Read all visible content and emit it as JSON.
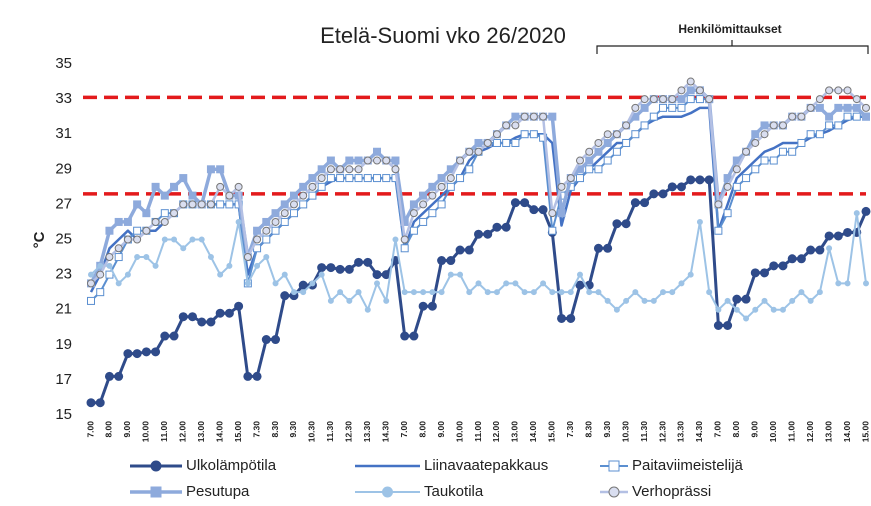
{
  "chart_data": {
    "type": "line",
    "title": "Etelä-Suomi vko 26/2020",
    "y_label": "°C",
    "annotation": "Henkilömittaukset",
    "categories": [
      "7.00",
      null,
      "8.00",
      null,
      "9.00",
      null,
      "10.00",
      null,
      "11.00",
      null,
      "12.00",
      null,
      "13.00",
      null,
      "14.00",
      null,
      "15.00",
      null,
      "7.30",
      null,
      "8.30",
      null,
      "9.30",
      null,
      "10.30",
      null,
      "11.30",
      null,
      "12.30",
      null,
      "13.30",
      null,
      "14.30",
      null,
      "7.00",
      null,
      "8.00",
      null,
      "9.00",
      null,
      "10.00",
      null,
      "11.00",
      null,
      "12.00",
      null,
      "13.00",
      null,
      "14.00",
      null,
      "15.00",
      null,
      "7.30",
      null,
      "8.30",
      null,
      "9.30",
      null,
      "10.30",
      null,
      "11.30",
      null,
      "12.30",
      null,
      "13.30",
      null,
      "14.30",
      null,
      "7.00",
      null,
      "8.00",
      null,
      "9.00",
      null,
      "10.00",
      null,
      "11.00",
      null,
      "12.00",
      null,
      "13.00",
      null,
      "14.00",
      null,
      "15.00"
    ],
    "ylim": [
      15,
      35
    ],
    "yticks": [
      15,
      17,
      19,
      21,
      23,
      25,
      27,
      29,
      31,
      33,
      35
    ],
    "grid": false,
    "reference_lines": [
      {
        "value": 33.1,
        "color": "#e31a1c"
      },
      {
        "value": 27.6,
        "color": "#e31a1c"
      }
    ],
    "series": [
      {
        "name": "Ulkolämpötila",
        "color": "#2f4b8a",
        "marker": "circle",
        "marker_fill": "#2f4b8a",
        "line_width": 3,
        "values": [
          15.7,
          15.7,
          17.2,
          17.2,
          18.5,
          18.5,
          18.6,
          18.6,
          19.5,
          19.5,
          20.6,
          20.6,
          20.3,
          20.3,
          20.8,
          20.8,
          21.2,
          17.2,
          17.2,
          19.3,
          19.3,
          21.8,
          21.8,
          22.4,
          22.4,
          23.4,
          23.4,
          23.3,
          23.3,
          23.7,
          23.7,
          23.0,
          23.0,
          23.8,
          19.5,
          19.5,
          21.2,
          21.2,
          23.8,
          23.8,
          24.4,
          24.4,
          25.3,
          25.3,
          25.7,
          25.7,
          27.1,
          27.1,
          26.7,
          26.7,
          25.4,
          20.5,
          20.5,
          22.4,
          22.4,
          24.5,
          24.5,
          25.9,
          25.9,
          27.1,
          27.1,
          27.6,
          27.6,
          28.0,
          28.0,
          28.4,
          28.4,
          28.4,
          20.1,
          20.1,
          21.6,
          21.6,
          23.1,
          23.1,
          23.5,
          23.5,
          23.9,
          23.9,
          24.4,
          24.4,
          25.2,
          25.2,
          25.4,
          25.4,
          26.6
        ]
      },
      {
        "name": "Liinavaatepakkaus",
        "color": "#4472c4",
        "marker": "none",
        "line_width": 2.5,
        "values": [
          22.0,
          23.0,
          24.5,
          25.0,
          25.5,
          25.0,
          25.5,
          25.5,
          26.0,
          26.5,
          27.0,
          27.0,
          27.0,
          27.0,
          27.0,
          27.0,
          27.0,
          23,
          24.5,
          25,
          25.5,
          26,
          26.5,
          27,
          27.5,
          28.0,
          28.3,
          28.5,
          28.5,
          28.5,
          28.5,
          28.5,
          28.5,
          28.5,
          24.5,
          26,
          26.5,
          27,
          27.5,
          28,
          28.5,
          29.5,
          30,
          30.2,
          30.5,
          30.5,
          30.8,
          31,
          31,
          31,
          30.5,
          25.8,
          27.8,
          28.5,
          29,
          29.5,
          30,
          30.5,
          30.5,
          31,
          31.5,
          31.8,
          32,
          32,
          32,
          32.2,
          32.5,
          32.5,
          25.5,
          27,
          28.5,
          29,
          29.5,
          30,
          30.2,
          30.5,
          30.5,
          30.5,
          30.8,
          31,
          31.2,
          31.5,
          31.8,
          32,
          32
        ]
      },
      {
        "name": "Paitaviimeistelijä",
        "color": "#5b8fd0",
        "marker": "square",
        "marker_fill": "#ffffff",
        "line_width": 2,
        "values": [
          21.5,
          22.0,
          23.0,
          24.0,
          25.0,
          25.5,
          25.5,
          26.0,
          26.5,
          26.5,
          27.0,
          27.0,
          27.0,
          27.0,
          27.0,
          27.0,
          27.0,
          22.5,
          24.5,
          25.0,
          25.5,
          26.0,
          26.5,
          27.0,
          27.5,
          28.0,
          28.5,
          28.5,
          28.5,
          28.5,
          28.5,
          28.5,
          28.5,
          28.5,
          24.5,
          25.5,
          26,
          26.5,
          27,
          28,
          28.5,
          29,
          30,
          30.5,
          30.5,
          30.5,
          30.5,
          31,
          31,
          30.8,
          25.5,
          27.5,
          28,
          28.5,
          29,
          29,
          29.5,
          30,
          30.5,
          31,
          31.5,
          32,
          32.5,
          32.5,
          32.5,
          33,
          33,
          33,
          25.5,
          26.5,
          28,
          28.5,
          29,
          29.5,
          29.5,
          30,
          30,
          30.5,
          31,
          31,
          31.5,
          31.5,
          32,
          32,
          32
        ]
      },
      {
        "name": "Pesutupa",
        "color": "#8eaadc",
        "marker": "square",
        "marker_fill": "#8eaadc",
        "line_width": 3.5,
        "values": [
          22.5,
          23.5,
          25.5,
          26,
          26,
          27,
          26.5,
          28,
          27.5,
          28,
          28.5,
          27.5,
          27,
          29,
          29,
          27.5,
          27.5,
          24,
          25.5,
          26,
          26.5,
          27,
          27.5,
          28,
          28.5,
          29,
          29.5,
          29,
          29.5,
          29.5,
          29.5,
          30,
          29.5,
          29.5,
          26,
          27,
          27.5,
          28,
          28.5,
          29,
          29.5,
          30,
          30.5,
          30.5,
          31,
          31.5,
          32,
          32,
          32,
          32,
          32,
          26.5,
          28.5,
          29,
          29.5,
          30,
          30.5,
          31,
          31.5,
          32,
          32.5,
          33,
          33,
          33,
          33,
          33.5,
          33.5,
          33,
          27,
          28.5,
          29.5,
          30,
          31,
          31.5,
          31.5,
          31.5,
          32,
          32,
          32.5,
          32.5,
          32,
          32.5,
          32.5,
          32.5,
          32
        ]
      },
      {
        "name": "Taukotila",
        "color": "#9dc3e6",
        "marker": "circle",
        "marker_fill": "#9dc3e6",
        "line_width": 2,
        "values": [
          23,
          23.5,
          23.5,
          22.5,
          23,
          24,
          24,
          23.5,
          25,
          25,
          24.5,
          25,
          25,
          24,
          23,
          23.5,
          26,
          22.5,
          23.5,
          24,
          22.5,
          23,
          22,
          22,
          22.5,
          23,
          21.5,
          22,
          21.5,
          22,
          21,
          22.5,
          21.5,
          25,
          22,
          22,
          22,
          22,
          22,
          23,
          23,
          22,
          22.5,
          22,
          22,
          22.5,
          22.5,
          22,
          22,
          22.5,
          22,
          22,
          22,
          23,
          22,
          22,
          21.5,
          21,
          21.5,
          22,
          21.5,
          21.5,
          22,
          22,
          22.5,
          23,
          26,
          22,
          21,
          21.5,
          21,
          20.5,
          21,
          21.5,
          21,
          21,
          21.5,
          22,
          21.5,
          22,
          24.5,
          22.5,
          22.5,
          26.5,
          22.5
        ]
      },
      {
        "name": "Verhoprässi",
        "color": "#b4c0e4",
        "marker": "circle",
        "marker_fill": "#d9def0",
        "marker_stroke": "#777777",
        "line_width": 2.5,
        "values": [
          22.5,
          23,
          24,
          24.5,
          25,
          25,
          25.5,
          26,
          26,
          26.5,
          27,
          27,
          27,
          27,
          28,
          27.5,
          28,
          24,
          25,
          25.5,
          26,
          26.5,
          27,
          27.5,
          28,
          28.5,
          29,
          29,
          29,
          29,
          29.5,
          29.5,
          29.5,
          29,
          25,
          26.5,
          27,
          27.5,
          28,
          28.5,
          29.5,
          30,
          30,
          30.5,
          31,
          31.5,
          31.5,
          32,
          32,
          32,
          26.5,
          28,
          28.5,
          29.5,
          30,
          30.5,
          31,
          31,
          31.5,
          32.5,
          33,
          33,
          33,
          33,
          33.5,
          34,
          33.5,
          33,
          27,
          28,
          29,
          30,
          30.5,
          31,
          31.5,
          31.5,
          32,
          32,
          32.5,
          33,
          33.5,
          33.5,
          33.5,
          33,
          32.5
        ]
      }
    ]
  }
}
